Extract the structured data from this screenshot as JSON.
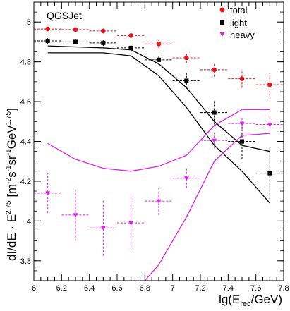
{
  "chart_data": {
    "type": "scatter",
    "annotation": "QGSJet",
    "xlabel": {
      "main": "lg(E",
      "sub": "rec",
      "tail": "/GeV)"
    },
    "ylabel": {
      "a": "dI/dE · E",
      "a_sup": "2.75",
      "b": " [m",
      "b_sup": "-2",
      "c": "s",
      "c_sup": "-1",
      "d": "sr",
      "d_sup": "-1",
      "e": "GeV",
      "e_sup": "1.75",
      "f": "]"
    },
    "xlim": [
      6.0,
      7.8
    ],
    "ylim": [
      3.7,
      5.1
    ],
    "log_y": true,
    "xticks": [
      6,
      6.2,
      6.4,
      6.6,
      6.8,
      7,
      7.2,
      7.4,
      7.6,
      7.8
    ],
    "xtick_labels": [
      "6",
      "6.2",
      "6.4",
      "6.6",
      "6.8",
      "7",
      "7.2",
      "7.4",
      "7.6",
      "7.8"
    ],
    "yticks": [
      3.8,
      4,
      4.2,
      4.4,
      4.6,
      4.8,
      5
    ],
    "ytick_labels": [
      "3.8",
      "4",
      "4.2",
      "4.4",
      "4.6",
      "4.8",
      "5"
    ],
    "legend_position": "top-right",
    "series": [
      {
        "name": "total",
        "color": "#e8141c",
        "marker": "circle",
        "points": [
          {
            "x": 6.1,
            "y": 4.965,
            "xerr": 0.1,
            "yerr": 0.012
          },
          {
            "x": 6.3,
            "y": 4.962,
            "xerr": 0.1,
            "yerr": 0.01
          },
          {
            "x": 6.5,
            "y": 4.955,
            "xerr": 0.1,
            "yerr": 0.012
          },
          {
            "x": 6.7,
            "y": 4.932,
            "xerr": 0.1,
            "yerr": 0.012
          },
          {
            "x": 6.9,
            "y": 4.89,
            "xerr": 0.1,
            "yerr": 0.02
          },
          {
            "x": 7.1,
            "y": 4.82,
            "xerr": 0.1,
            "yerr": 0.025
          },
          {
            "x": 7.3,
            "y": 4.76,
            "xerr": 0.1,
            "yerr": 0.035
          },
          {
            "x": 7.5,
            "y": 4.715,
            "xerr": 0.1,
            "yerr": 0.045
          },
          {
            "x": 7.7,
            "y": 4.685,
            "xerr": 0.1,
            "yerr": 0.06
          }
        ]
      },
      {
        "name": "light",
        "color": "#000000",
        "marker": "square",
        "points": [
          {
            "x": 6.1,
            "y": 4.905,
            "xerr": 0.1,
            "yerr": 0.015
          },
          {
            "x": 6.3,
            "y": 4.9,
            "xerr": 0.1,
            "yerr": 0.012
          },
          {
            "x": 6.5,
            "y": 4.895,
            "xerr": 0.1,
            "yerr": 0.015
          },
          {
            "x": 6.7,
            "y": 4.87,
            "xerr": 0.1,
            "yerr": 0.02
          },
          {
            "x": 6.9,
            "y": 4.81,
            "xerr": 0.1,
            "yerr": 0.025
          },
          {
            "x": 7.1,
            "y": 4.705,
            "xerr": 0.1,
            "yerr": 0.04
          },
          {
            "x": 7.3,
            "y": 4.545,
            "xerr": 0.1,
            "yerr": 0.06
          },
          {
            "x": 7.5,
            "y": 4.4,
            "xerr": 0.1,
            "yerr": 0.09
          },
          {
            "x": 7.7,
            "y": 4.24,
            "xerr": 0.1,
            "yerr": 0.13
          }
        ]
      },
      {
        "name": "heavy",
        "color": "#e020e8",
        "marker": "triangle-down",
        "points": [
          {
            "x": 6.1,
            "y": 4.14,
            "xerr": 0.1,
            "yerr": 0.1
          },
          {
            "x": 6.3,
            "y": 4.03,
            "xerr": 0.1,
            "yerr": 0.13
          },
          {
            "x": 6.5,
            "y": 3.965,
            "xerr": 0.1,
            "yerr": 0.14
          },
          {
            "x": 6.7,
            "y": 3.99,
            "xerr": 0.1,
            "yerr": 0.14
          },
          {
            "x": 6.9,
            "y": 4.1,
            "xerr": 0.1,
            "yerr": 0.07
          },
          {
            "x": 7.1,
            "y": 4.215,
            "xerr": 0.1,
            "yerr": 0.05
          },
          {
            "x": 7.3,
            "y": 4.405,
            "xerr": 0.1,
            "yerr": 0.04
          },
          {
            "x": 7.5,
            "y": 4.49,
            "xerr": 0.1,
            "yerr": 0.035
          },
          {
            "x": 7.7,
            "y": 4.485,
            "xerr": 0.1,
            "yerr": 0.04
          }
        ]
      }
    ],
    "bands": [
      {
        "color": "#000000",
        "upper": [
          [
            6.1,
            4.88
          ],
          [
            6.3,
            4.875
          ],
          [
            6.5,
            4.87
          ],
          [
            6.7,
            4.86
          ],
          [
            6.9,
            4.79
          ],
          [
            7.1,
            4.67
          ],
          [
            7.3,
            4.5
          ],
          [
            7.5,
            4.38
          ],
          [
            7.7,
            4.35
          ]
        ],
        "lower": [
          [
            6.1,
            4.845
          ],
          [
            6.3,
            4.845
          ],
          [
            6.5,
            4.845
          ],
          [
            6.7,
            4.83
          ],
          [
            6.9,
            4.73
          ],
          [
            7.1,
            4.57
          ],
          [
            7.3,
            4.38
          ],
          [
            7.5,
            4.25
          ],
          [
            7.7,
            4.09
          ]
        ]
      },
      {
        "color": "#e020e8",
        "upper": [
          [
            6.1,
            4.39
          ],
          [
            6.3,
            4.31
          ],
          [
            6.5,
            4.265
          ],
          [
            6.7,
            4.25
          ],
          [
            6.9,
            4.275
          ],
          [
            7.1,
            4.33
          ],
          [
            7.3,
            4.48
          ],
          [
            7.5,
            4.56
          ],
          [
            7.7,
            4.56
          ]
        ],
        "lower": [
          [
            6.8,
            3.7
          ],
          [
            6.9,
            3.78
          ],
          [
            7.1,
            4.02
          ],
          [
            7.3,
            4.3
          ],
          [
            7.5,
            4.43
          ],
          [
            7.7,
            4.44
          ]
        ]
      }
    ]
  }
}
